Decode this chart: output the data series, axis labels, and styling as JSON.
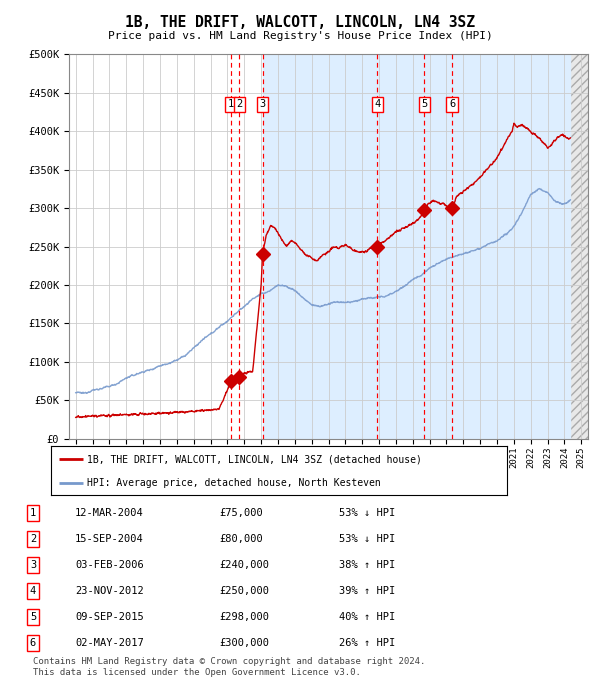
{
  "title": "1B, THE DRIFT, WALCOTT, LINCOLN, LN4 3SZ",
  "subtitle": "Price paid vs. HM Land Registry's House Price Index (HPI)",
  "bg_color": "#ffffff",
  "chart_bg": "#ffffff",
  "grid_color": "#cccccc",
  "hpi_line_color": "#7799cc",
  "price_line_color": "#cc0000",
  "sale_marker_color": "#cc0000",
  "shaded_region_color": "#ddeeff",
  "ylim": [
    0,
    500000
  ],
  "yticks": [
    0,
    50000,
    100000,
    150000,
    200000,
    250000,
    300000,
    350000,
    400000,
    450000,
    500000
  ],
  "ytick_labels": [
    "£0",
    "£50K",
    "£100K",
    "£150K",
    "£200K",
    "£250K",
    "£300K",
    "£350K",
    "£400K",
    "£450K",
    "£500K"
  ],
  "xlim_start": 1994.6,
  "xlim_end": 2025.4,
  "sale_events": [
    {
      "label": "1",
      "date_x": 2004.19,
      "price": 75000
    },
    {
      "label": "2",
      "date_x": 2004.71,
      "price": 80000
    },
    {
      "label": "3",
      "date_x": 2006.09,
      "price": 240000
    },
    {
      "label": "4",
      "date_x": 2012.9,
      "price": 250000
    },
    {
      "label": "5",
      "date_x": 2015.69,
      "price": 298000
    },
    {
      "label": "6",
      "date_x": 2017.34,
      "price": 300000
    }
  ],
  "legend_label_red": "1B, THE DRIFT, WALCOTT, LINCOLN, LN4 3SZ (detached house)",
  "legend_label_blue": "HPI: Average price, detached house, North Kesteven",
  "table_rows": [
    {
      "num": "1",
      "date": "12-MAR-2004",
      "price": "£75,000",
      "hpi": "53% ↓ HPI"
    },
    {
      "num": "2",
      "date": "15-SEP-2004",
      "price": "£80,000",
      "hpi": "53% ↓ HPI"
    },
    {
      "num": "3",
      "date": "03-FEB-2006",
      "price": "£240,000",
      "hpi": "38% ↑ HPI"
    },
    {
      "num": "4",
      "date": "23-NOV-2012",
      "price": "£250,000",
      "hpi": "39% ↑ HPI"
    },
    {
      "num": "5",
      "date": "09-SEP-2015",
      "price": "£298,000",
      "hpi": "40% ↑ HPI"
    },
    {
      "num": "6",
      "date": "02-MAY-2017",
      "price": "£300,000",
      "hpi": "26% ↑ HPI"
    }
  ],
  "footer": "Contains HM Land Registry data © Crown copyright and database right 2024.\nThis data is licensed under the Open Government Licence v3.0.",
  "shaded_start": 2006.09,
  "hatch_start": 2024.33,
  "hatch_end": 2025.4
}
